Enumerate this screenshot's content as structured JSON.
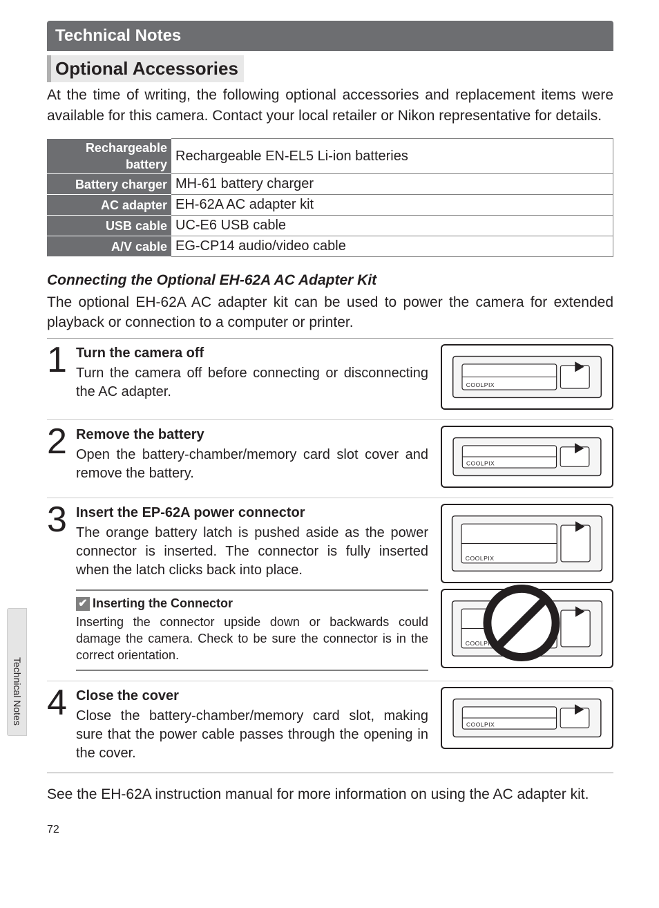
{
  "section_header": "Technical Notes",
  "subsection_title": "Optional Accessories",
  "intro_text": "At the time of writing, the following optional accessories and replacement items were available for this camera.  Contact your local retailer or Nikon representative for details.",
  "accessories": {
    "rows": [
      {
        "label": "Rechargeable battery",
        "value": "Rechargeable EN-EL5 Li-ion batteries"
      },
      {
        "label": "Battery charger",
        "value": "MH-61 battery charger"
      },
      {
        "label": "AC adapter",
        "value": "EH-62A AC adapter kit"
      },
      {
        "label": "USB cable",
        "value": "UC-E6 USB cable"
      },
      {
        "label": "A/V cable",
        "value": "EG-CP14 audio/video cable"
      }
    ]
  },
  "subhead_italic": "Connecting the Optional EH-62A AC Adapter Kit",
  "adapter_intro": "The optional EH-62A AC adapter kit can be used to power the camera for extended playback or connection to a computer or printer.",
  "steps": [
    {
      "num": "1",
      "title": "Turn the camera off",
      "text": "Turn the camera off before connecting or disconnecting the AC adapter.",
      "figs": 1,
      "fig_h": 95
    },
    {
      "num": "2",
      "title": "Remove the battery",
      "text": "Open the battery-chamber/memory card slot cover and remove the battery.",
      "figs": 1,
      "fig_h": 90
    },
    {
      "num": "3",
      "title": "Insert the EP-62A power connector",
      "text": "The orange battery latch is pushed aside as the power connector is inserted.  The connector is fully inserted when the latch clicks back into place.",
      "figs": 2,
      "fig_h": 115,
      "prohibit_second": true,
      "note": {
        "title": "Inserting the Connector",
        "text": "Inserting the connector upside down or backwards could damage the camera.  Check to be sure the connector is in the correct orientation."
      }
    },
    {
      "num": "4",
      "title": "Close the cover",
      "text": "Close the battery-chamber/memory card slot, making sure that the power cable passes through the opening in the cover.",
      "figs": 1,
      "fig_h": 90
    }
  ],
  "footer_text": "See the EH-62A instruction manual for more information on using the AC adapter kit.",
  "page_num": "72",
  "side_tab": "Technical Notes",
  "check_glyph": "✔",
  "colors": {
    "header_bg": "#6d6e71",
    "text": "#231f20",
    "rule": "#999999"
  }
}
